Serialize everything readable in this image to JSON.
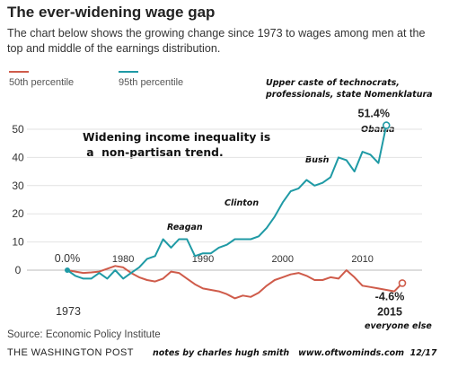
{
  "header": {
    "title": "The ever-widening wage gap",
    "subtitle": "The chart below shows the growing change since 1973 to wages among men at the top and middle of the earnings distribution."
  },
  "annotations": {
    "upper_caste": "Upper caste of technocrats, professionals, state Nomenklatura",
    "callout": "Widening income inequality is\n a  non-partisan trend.",
    "reagan": "Reagan",
    "clinton": "Clinton",
    "bush": "Bush",
    "obama": "Obama",
    "everyone_else": "everyone else"
  },
  "footer": {
    "source": "Source: Economic Policy Institute",
    "brand": "THE WASHINGTON POST",
    "credit": "notes by charles hugh smith   www.oftwominds.com  12/17"
  },
  "chart_data": {
    "type": "line",
    "title": "The ever-widening wage gap",
    "xlabel": "",
    "ylabel": "",
    "ylim": [
      -10,
      55
    ],
    "xlim": [
      1973,
      2015
    ],
    "yticks": [
      0,
      10,
      20,
      30,
      40,
      50
    ],
    "xticks": [
      1980,
      1990,
      2000,
      2010
    ],
    "first_tick_label": "1973",
    "start_value_label": "0.0%",
    "grid": true,
    "legend_position": "top-left",
    "series": [
      {
        "name": "50th percentile",
        "color": "#cf5b4a",
        "end_label": "-4.6%",
        "end_year_label": "2015",
        "x": [
          1973,
          1974,
          1975,
          1976,
          1977,
          1978,
          1979,
          1980,
          1981,
          1982,
          1983,
          1984,
          1985,
          1986,
          1987,
          1988,
          1989,
          1990,
          1991,
          1992,
          1993,
          1994,
          1995,
          1996,
          1997,
          1998,
          1999,
          2000,
          2001,
          2002,
          2003,
          2004,
          2005,
          2006,
          2007,
          2008,
          2009,
          2010,
          2011,
          2012,
          2013,
          2014,
          2015
        ],
        "values": [
          0,
          -0.5,
          -1,
          -0.8,
          -0.5,
          0.5,
          1.5,
          1,
          -1,
          -2.5,
          -3.5,
          -4,
          -3,
          -0.5,
          -1,
          -3,
          -5,
          -6.5,
          -7,
          -7.5,
          -8.5,
          -10,
          -9,
          -9.5,
          -8,
          -5.5,
          -3.5,
          -2.5,
          -1.5,
          -1,
          -2,
          -3.5,
          -3.5,
          -2.5,
          -3,
          0,
          -2.5,
          -5.5,
          -6,
          -6.5,
          -7,
          -7.5,
          -4.6
        ]
      },
      {
        "name": "95th percentile",
        "color": "#1f9aa5",
        "end_label": "51.4%",
        "x": [
          1973,
          1974,
          1975,
          1976,
          1977,
          1978,
          1979,
          1980,
          1981,
          1982,
          1983,
          1984,
          1985,
          1986,
          1987,
          1988,
          1989,
          1990,
          1991,
          1992,
          1993,
          1994,
          1995,
          1996,
          1997,
          1998,
          1999,
          2000,
          2001,
          2002,
          2003,
          2004,
          2005,
          2006,
          2007,
          2008,
          2009,
          2010,
          2011,
          2012,
          2013,
          2014,
          2015
        ],
        "values": [
          0,
          -2,
          -3,
          -3,
          -1,
          -3,
          0,
          -3,
          -1,
          1,
          4,
          5,
          11,
          8,
          11,
          11,
          5,
          6,
          6,
          8,
          9,
          11,
          11,
          11,
          12,
          15,
          19,
          24,
          28,
          29,
          32,
          30,
          31,
          33,
          40,
          39,
          35,
          42,
          41,
          38,
          51.4,
          null,
          null
        ]
      }
    ]
  }
}
